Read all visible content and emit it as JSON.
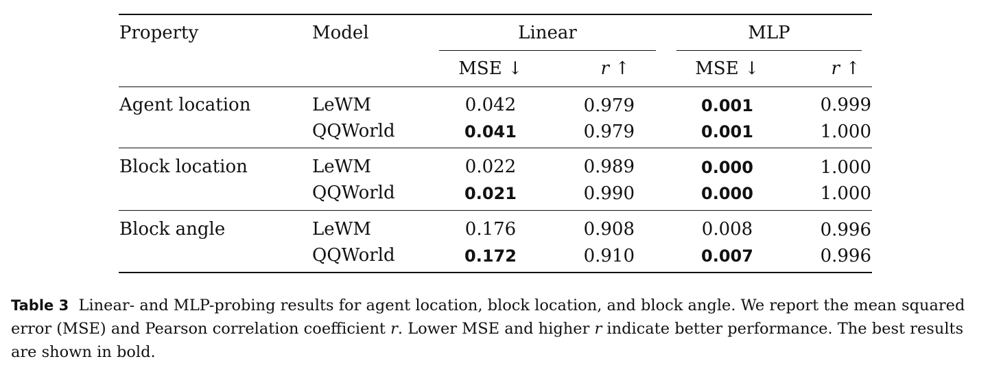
{
  "table": {
    "headers": {
      "property": "Property",
      "model": "Model",
      "linear": "Linear",
      "mlp": "MLP",
      "mse": "MSE ↓",
      "r_var": "r",
      "r_arrow": "↑"
    },
    "groups": [
      {
        "property": "Agent location",
        "rows": [
          {
            "model": "LeWM",
            "lin_mse": "0.042",
            "lin_r": "0.979",
            "mlp_mse": "0.001",
            "mlp_r": "0.999",
            "bold": {
              "lin_mse": false,
              "lin_r": true,
              "mlp_mse": true,
              "mlp_r": false
            }
          },
          {
            "model": "QQWorld",
            "lin_mse": "0.041",
            "lin_r": "0.979",
            "mlp_mse": "0.001",
            "mlp_r": "1.000",
            "bold": {
              "lin_mse": true,
              "lin_r": true,
              "mlp_mse": true,
              "mlp_r": true
            }
          }
        ]
      },
      {
        "property": "Block location",
        "rows": [
          {
            "model": "LeWM",
            "lin_mse": "0.022",
            "lin_r": "0.989",
            "mlp_mse": "0.000",
            "mlp_r": "1.000",
            "bold": {
              "lin_mse": false,
              "lin_r": false,
              "mlp_mse": true,
              "mlp_r": true
            }
          },
          {
            "model": "QQWorld",
            "lin_mse": "0.021",
            "lin_r": "0.990",
            "mlp_mse": "0.000",
            "mlp_r": "1.000",
            "bold": {
              "lin_mse": true,
              "lin_r": true,
              "mlp_mse": true,
              "mlp_r": true
            }
          }
        ]
      },
      {
        "property": "Block angle",
        "rows": [
          {
            "model": "LeWM",
            "lin_mse": "0.176",
            "lin_r": "0.908",
            "mlp_mse": "0.008",
            "mlp_r": "0.996",
            "bold": {
              "lin_mse": false,
              "lin_r": false,
              "mlp_mse": false,
              "mlp_r": true
            }
          },
          {
            "model": "QQWorld",
            "lin_mse": "0.172",
            "lin_r": "0.910",
            "mlp_mse": "0.007",
            "mlp_r": "0.996",
            "bold": {
              "lin_mse": true,
              "lin_r": true,
              "mlp_mse": true,
              "mlp_r": true
            }
          }
        ]
      }
    ]
  },
  "caption": {
    "label": "Table 3",
    "text_1": "Linear- and MLP-probing results for agent location, block location, and block angle. We report the mean squared error (MSE) and Pearson correlation coefficient ",
    "r_1": "r",
    "text_2": ". Lower MSE and higher ",
    "r_2": "r",
    "text_3": " indicate better performance. The best results are shown in bold."
  }
}
